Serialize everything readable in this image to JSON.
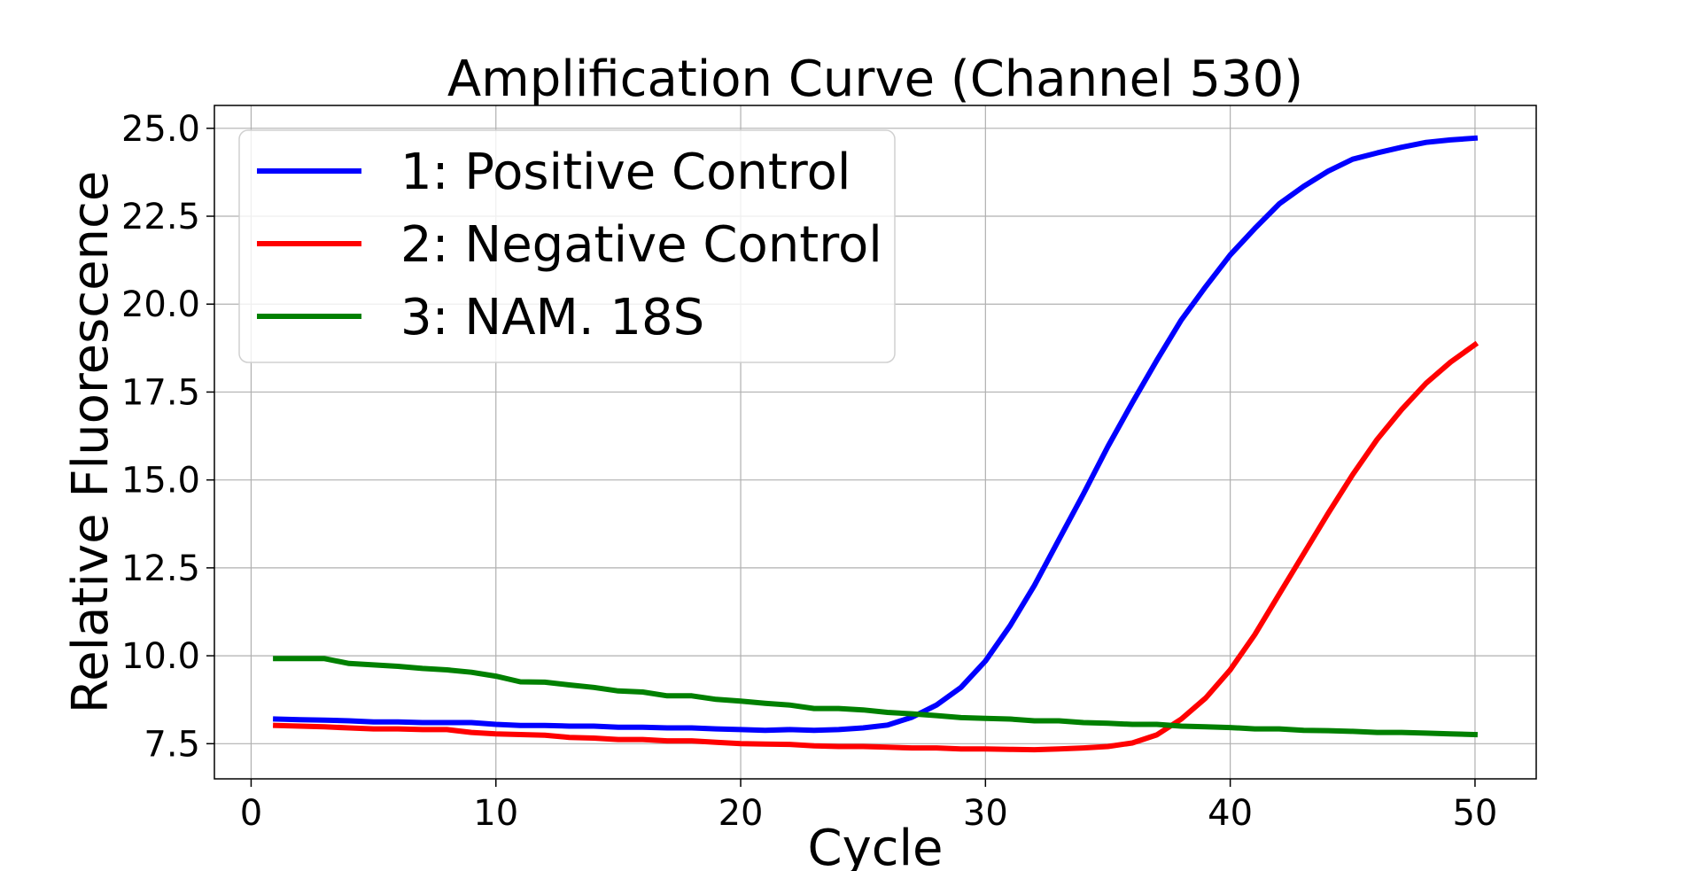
{
  "chart_data": {
    "type": "line",
    "title": "Amplification Curve (Channel 530)",
    "xlabel": "Cycle",
    "ylabel": "Relative Fluorescence",
    "xlim": [
      -1.5,
      52.5
    ],
    "ylim": [
      6.5,
      25.65
    ],
    "xticks": [
      0,
      10,
      20,
      30,
      40,
      50
    ],
    "yticks": [
      7.5,
      10.0,
      12.5,
      15.0,
      17.5,
      20.0,
      22.5,
      25.0
    ],
    "xtick_labels": [
      "0",
      "10",
      "20",
      "30",
      "40",
      "50"
    ],
    "ytick_labels": [
      "7.5",
      "10.0",
      "12.5",
      "15.0",
      "17.5",
      "20.0",
      "22.5",
      "25.0"
    ],
    "grid": true,
    "legend_position": "top-left",
    "x": [
      1,
      2,
      3,
      4,
      5,
      6,
      7,
      8,
      9,
      10,
      11,
      12,
      13,
      14,
      15,
      16,
      17,
      18,
      19,
      20,
      21,
      22,
      23,
      24,
      25,
      26,
      27,
      28,
      29,
      30,
      31,
      32,
      33,
      34,
      35,
      36,
      37,
      38,
      39,
      40,
      41,
      42,
      43,
      44,
      45,
      46,
      47,
      48,
      49,
      50
    ],
    "series": [
      {
        "name": "1: Positive Control",
        "color": "#0000ff",
        "values": [
          8.2,
          8.18,
          8.17,
          8.15,
          8.12,
          8.12,
          8.1,
          8.1,
          8.1,
          8.05,
          8.02,
          8.02,
          8.0,
          8.0,
          7.97,
          7.97,
          7.95,
          7.95,
          7.92,
          7.9,
          7.88,
          7.9,
          7.88,
          7.9,
          7.95,
          8.03,
          8.25,
          8.6,
          9.1,
          9.85,
          10.85,
          12.0,
          13.3,
          14.6,
          15.95,
          17.2,
          18.4,
          19.55,
          20.5,
          21.4,
          22.15,
          22.85,
          23.35,
          23.78,
          24.12,
          24.3,
          24.46,
          24.6,
          24.67,
          24.72
        ]
      },
      {
        "name": "2: Negative Control",
        "color": "#ff0000",
        "values": [
          8.02,
          8.0,
          7.98,
          7.95,
          7.92,
          7.92,
          7.9,
          7.9,
          7.82,
          7.78,
          7.76,
          7.74,
          7.68,
          7.66,
          7.62,
          7.62,
          7.58,
          7.58,
          7.54,
          7.5,
          7.49,
          7.48,
          7.44,
          7.42,
          7.42,
          7.4,
          7.38,
          7.38,
          7.35,
          7.35,
          7.34,
          7.33,
          7.35,
          7.38,
          7.42,
          7.52,
          7.75,
          8.2,
          8.8,
          9.6,
          10.6,
          11.75,
          12.9,
          14.05,
          15.15,
          16.15,
          17.0,
          17.75,
          18.35,
          18.85
        ]
      },
      {
        "name": "3: NAM. 18S",
        "color": "#008000",
        "values": [
          9.92,
          9.92,
          9.92,
          9.78,
          9.74,
          9.7,
          9.64,
          9.6,
          9.53,
          9.42,
          9.26,
          9.25,
          9.17,
          9.1,
          9.0,
          8.97,
          8.86,
          8.86,
          8.76,
          8.71,
          8.65,
          8.6,
          8.5,
          8.5,
          8.46,
          8.39,
          8.35,
          8.3,
          8.24,
          8.22,
          8.2,
          8.15,
          8.15,
          8.1,
          8.08,
          8.05,
          8.05,
          8.0,
          7.98,
          7.96,
          7.92,
          7.92,
          7.88,
          7.87,
          7.85,
          7.82,
          7.82,
          7.8,
          7.78,
          7.76
        ]
      }
    ]
  }
}
